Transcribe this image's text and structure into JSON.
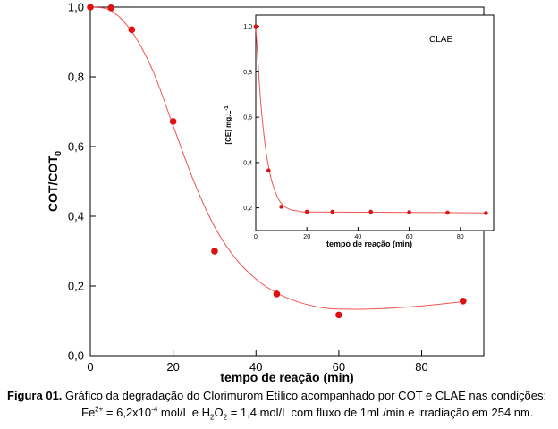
{
  "chart_data": [
    {
      "type": "scatter",
      "panel": "main",
      "xlabel": "tempo de reação (min)",
      "ylabel_main": "COT/COT",
      "ylabel_sub": "0",
      "xlim": [
        0,
        95
      ],
      "ylim": [
        0,
        1.0
      ],
      "xticks": [
        "0",
        "20",
        "40",
        "60",
        "80"
      ],
      "xtick_values": [
        0,
        20,
        40,
        60,
        80
      ],
      "yticks": [
        "0,0",
        "0,2",
        "0,4",
        "0,6",
        "0,8",
        "1,0"
      ],
      "ytick_values": [
        0,
        0.2,
        0.4,
        0.6,
        0.8,
        1.0
      ],
      "series": [
        {
          "points": [
            {
              "x": 0,
              "y": 1.0
            },
            {
              "x": 5,
              "y": 0.998
            },
            {
              "x": 10,
              "y": 0.935
            },
            {
              "x": 20,
              "y": 0.672
            },
            {
              "x": 30,
              "y": 0.3
            },
            {
              "x": 45,
              "y": 0.177
            },
            {
              "x": 60,
              "y": 0.117
            },
            {
              "x": 90,
              "y": 0.157
            }
          ],
          "fit": [
            {
              "x": 0,
              "y": 1.0
            },
            {
              "x": 5,
              "y": 0.99
            },
            {
              "x": 10,
              "y": 0.93
            },
            {
              "x": 15,
              "y": 0.82
            },
            {
              "x": 20,
              "y": 0.66
            },
            {
              "x": 25,
              "y": 0.5
            },
            {
              "x": 30,
              "y": 0.37
            },
            {
              "x": 35,
              "y": 0.28
            },
            {
              "x": 40,
              "y": 0.22
            },
            {
              "x": 45,
              "y": 0.18
            },
            {
              "x": 50,
              "y": 0.155
            },
            {
              "x": 55,
              "y": 0.14
            },
            {
              "x": 60,
              "y": 0.134
            },
            {
              "x": 70,
              "y": 0.135
            },
            {
              "x": 80,
              "y": 0.143
            },
            {
              "x": 90,
              "y": 0.155
            }
          ]
        }
      ]
    },
    {
      "type": "scatter",
      "panel": "inset",
      "title": "CLAE",
      "xlabel": "tempo de reação (min)",
      "ylabel": "[CE] mg.L",
      "ylabel_sup": "-1",
      "xlim": [
        0,
        93
      ],
      "ylim": [
        0.1,
        1.05
      ],
      "xticks": [
        "0",
        "20",
        "40",
        "60",
        "80"
      ],
      "xtick_values": [
        0,
        20,
        40,
        60,
        80
      ],
      "yticks": [
        "0,2",
        "0,4",
        "0,6",
        "0,8",
        "1,0"
      ],
      "ytick_values": [
        0.2,
        0.4,
        0.6,
        0.8,
        1.0
      ],
      "series": [
        {
          "points": [
            {
              "x": 0,
              "y": 1.0
            },
            {
              "x": 5,
              "y": 0.365
            },
            {
              "x": 10,
              "y": 0.205
            },
            {
              "x": 20,
              "y": 0.183
            },
            {
              "x": 30,
              "y": 0.183
            },
            {
              "x": 45,
              "y": 0.183
            },
            {
              "x": 60,
              "y": 0.181
            },
            {
              "x": 75,
              "y": 0.179
            },
            {
              "x": 90,
              "y": 0.177
            }
          ],
          "fit": [
            {
              "x": 0,
              "y": 1.0
            },
            {
              "x": 2,
              "y": 0.66
            },
            {
              "x": 4,
              "y": 0.45
            },
            {
              "x": 6,
              "y": 0.33
            },
            {
              "x": 8,
              "y": 0.26
            },
            {
              "x": 10,
              "y": 0.22
            },
            {
              "x": 13,
              "y": 0.195
            },
            {
              "x": 17,
              "y": 0.185
            },
            {
              "x": 20,
              "y": 0.182
            },
            {
              "x": 40,
              "y": 0.181
            },
            {
              "x": 60,
              "y": 0.18
            },
            {
              "x": 90,
              "y": 0.178
            }
          ]
        }
      ]
    }
  ],
  "colors": {
    "marker": "#dd1111",
    "fit_line": "#ee5555",
    "axis": "#000000"
  },
  "caption": {
    "bold": "Figura 01.",
    "line1": " Gráfico da degradação do Clorimurom Etílico acompanhado por COT e CLAE nas condições:",
    "line2_a": "Fe",
    "line2_sup1": "2+",
    "line2_b": " = 6,2x10",
    "line2_sup2": "-4",
    "line2_c": " mol/L e H",
    "line2_sub1": "2",
    "line2_d": "O",
    "line2_sub2": "2",
    "line2_e": " = 1,4 mol/L com fluxo de 1mL/min e irradiação em 254 nm."
  }
}
